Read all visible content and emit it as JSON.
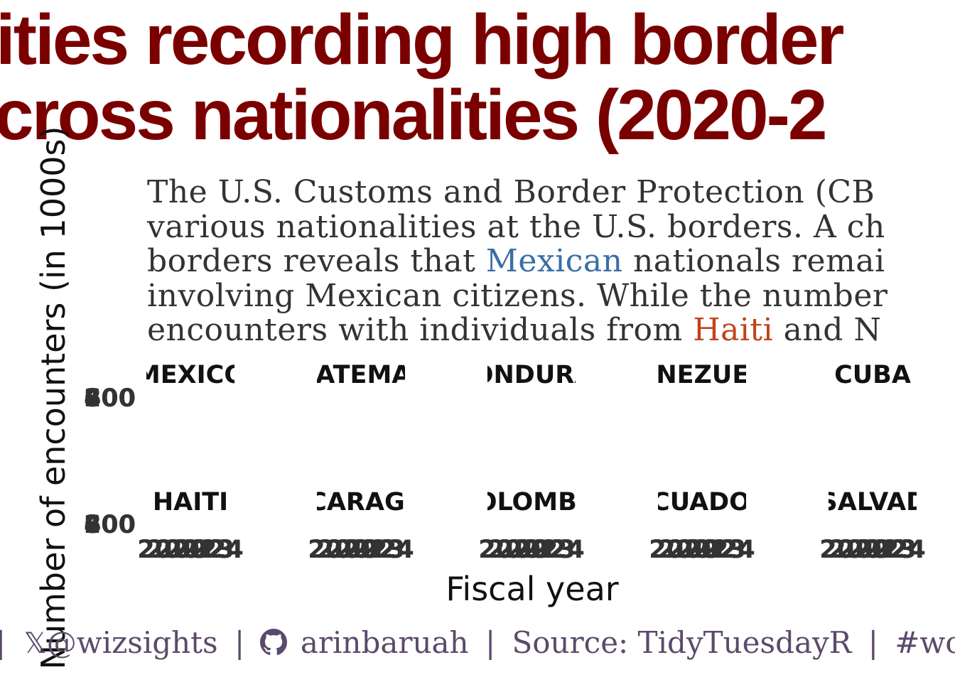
{
  "title": {
    "line1": "ities recording high border",
    "line2": "cross nationalities (2020-2"
  },
  "subtitle": {
    "line1": "The U.S. Customs and Border Protection (CB",
    "line2": "various nationalities at the U.S. borders. A ch",
    "line3_pre": "borders reveals that ",
    "line3_highlight": "Mexican",
    "line3_post": " nationals remai",
    "line4": "involving Mexican citizens. While the number",
    "line5_pre": "encounters  with individuals from ",
    "line5_highlight": "Haiti",
    "line5_post": " and N"
  },
  "colors": {
    "title": "#7a0000",
    "mexican_highlight": "#3a6ea5",
    "haiti_highlight": "#c0441a",
    "caption": "#5b4a6b",
    "tick_text": "#333333"
  },
  "chart_data": {
    "type": "bar",
    "facets": [
      {
        "label": "MEXICO"
      },
      {
        "label": "GUATEMALA"
      },
      {
        "label": "HONDURAS"
      },
      {
        "label": "VENEZUELA"
      },
      {
        "label": "CUBA"
      },
      {
        "label": "HAITI"
      },
      {
        "label": "NICARAGUA"
      },
      {
        "label": "COLOMBIA"
      },
      {
        "label": "ECUADOR"
      },
      {
        "label": "EL SALVADOR"
      }
    ],
    "y_tick_labels": [
      "0",
      "200",
      "400",
      "600",
      "800"
    ],
    "x_tick_labels": [
      "2020",
      "2021",
      "2022",
      "2023",
      "2024"
    ],
    "xlabel": "Fiscal year",
    "ylabel": "Number of encounters (in 1000s)"
  },
  "caption": {
    "sep1": "|",
    "x_icon": "x-logo-icon",
    "x_handle": "@wizsights",
    "sep2": "|",
    "github_icon": "github-icon",
    "github_handle": "arinbaruah",
    "sep3": "|",
    "source": "Source: TidyTuesdayR",
    "sep4": "|",
    "hashtag": "#wor"
  }
}
